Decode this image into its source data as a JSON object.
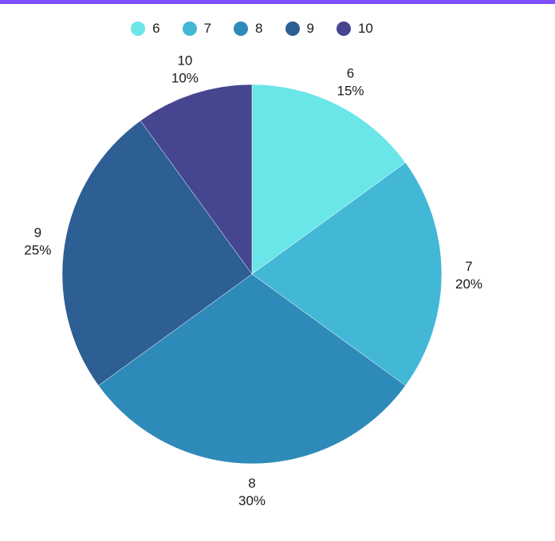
{
  "theme": {
    "accent_bar_color": "#7c4dff"
  },
  "chart_data": {
    "type": "pie",
    "categories": [
      "6",
      "7",
      "8",
      "9",
      "10"
    ],
    "values": [
      15,
      20,
      30,
      25,
      10
    ],
    "percent_labels": [
      "15%",
      "20%",
      "30%",
      "25%",
      "10%"
    ],
    "colors": [
      "#6ae6e8",
      "#43b7d6",
      "#2e8ab8",
      "#2d5e94",
      "#46458f"
    ],
    "legend": [
      "6",
      "7",
      "8",
      "9",
      "10"
    ],
    "legend_position": "top-center",
    "start_angle": "12 o'clock",
    "direction": "clockwise"
  }
}
